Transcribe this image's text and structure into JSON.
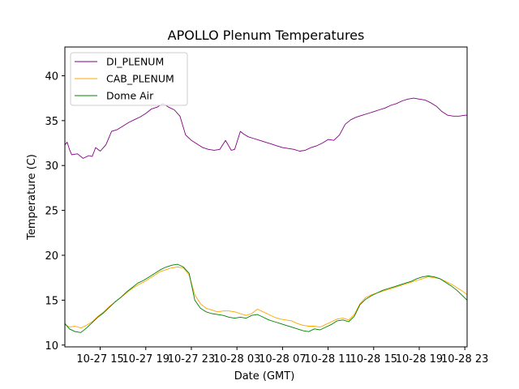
{
  "chart_data": {
    "type": "line",
    "title": "APOLLO Plenum Temperatures",
    "xlabel": "Date (GMT)",
    "ylabel": "Temperature (C)",
    "x_ticks": [
      "10-27 15",
      "10-27 19",
      "10-27 23",
      "10-28 03",
      "10-28 07",
      "10-28 11",
      "10-28 15",
      "10-28 19",
      "10-28 23"
    ],
    "y_ticks": [
      10,
      15,
      20,
      25,
      30,
      35,
      40
    ],
    "ylim": [
      9.8,
      43.2
    ],
    "xlim_hours": [
      11.9,
      47.2
    ],
    "x_tick_hours": [
      15,
      19,
      23,
      27,
      31,
      35,
      39,
      43,
      47
    ],
    "legend": {
      "placement": "top-left"
    },
    "series": [
      {
        "name": "DI_PLENUM",
        "color": "#800080",
        "x": [
          11.9,
          12.1,
          12.3,
          12.5,
          13.0,
          13.5,
          14.0,
          14.3,
          14.6,
          15.0,
          15.5,
          16.0,
          16.5,
          17.0,
          17.5,
          18.0,
          18.5,
          19.0,
          19.5,
          20.0,
          20.5,
          21.0,
          21.5,
          22.0,
          22.5,
          23.0,
          23.5,
          24.0,
          24.5,
          25.0,
          25.5,
          26.0,
          26.5,
          26.8,
          27.3,
          27.6,
          28.0,
          28.5,
          29.0,
          29.5,
          30.0,
          30.5,
          31.0,
          31.5,
          32.0,
          32.5,
          33.0,
          33.5,
          34.0,
          34.5,
          35.0,
          35.5,
          36.0,
          36.5,
          37.0,
          37.5,
          38.0,
          38.5,
          39.0,
          39.5,
          40.0,
          40.5,
          41.0,
          41.5,
          42.0,
          42.5,
          43.0,
          43.5,
          44.0,
          44.5,
          45.0,
          45.5,
          46.0,
          46.5,
          47.0,
          47.2
        ],
        "values": [
          32.3,
          32.6,
          31.8,
          31.2,
          31.3,
          30.8,
          31.1,
          31.0,
          32.0,
          31.6,
          32.3,
          33.8,
          34.0,
          34.4,
          34.8,
          35.1,
          35.4,
          35.8,
          36.3,
          36.5,
          36.9,
          36.5,
          36.2,
          35.5,
          33.4,
          32.8,
          32.4,
          32.0,
          31.8,
          31.7,
          31.8,
          32.8,
          31.7,
          31.8,
          33.8,
          33.5,
          33.2,
          33.0,
          32.8,
          32.6,
          32.4,
          32.2,
          32.0,
          31.9,
          31.8,
          31.6,
          31.7,
          32.0,
          32.2,
          32.5,
          32.9,
          32.8,
          33.4,
          34.6,
          35.1,
          35.4,
          35.6,
          35.8,
          36.0,
          36.2,
          36.4,
          36.7,
          36.9,
          37.2,
          37.4,
          37.5,
          37.4,
          37.3,
          37.0,
          36.6,
          36.0,
          35.6,
          35.5,
          35.5,
          35.6,
          35.6
        ]
      },
      {
        "name": "CAB_PLENUM",
        "color": "#ffa500",
        "x": [
          11.9,
          12.3,
          12.8,
          13.3,
          13.8,
          14.3,
          14.8,
          15.3,
          15.8,
          16.3,
          16.8,
          17.3,
          17.8,
          18.3,
          18.8,
          19.3,
          19.8,
          20.3,
          20.8,
          21.3,
          21.8,
          22.3,
          22.8,
          23.3,
          23.8,
          24.3,
          24.8,
          25.3,
          25.8,
          26.3,
          26.8,
          27.3,
          27.8,
          28.3,
          28.8,
          29.3,
          29.8,
          30.3,
          30.8,
          31.3,
          31.8,
          32.3,
          32.8,
          33.3,
          33.8,
          34.3,
          34.8,
          35.3,
          35.8,
          36.3,
          36.8,
          37.3,
          37.8,
          38.3,
          38.8,
          39.3,
          39.8,
          40.3,
          40.8,
          41.3,
          41.8,
          42.3,
          42.8,
          43.3,
          43.8,
          44.3,
          44.8,
          45.3,
          45.8,
          46.3,
          46.8,
          47.2
        ],
        "values": [
          12.3,
          12.0,
          12.1,
          11.9,
          12.2,
          12.6,
          13.2,
          13.7,
          14.3,
          14.8,
          15.3,
          15.8,
          16.3,
          16.7,
          17.0,
          17.4,
          17.8,
          18.2,
          18.4,
          18.6,
          18.7,
          18.6,
          17.8,
          15.6,
          14.6,
          14.1,
          13.9,
          13.7,
          13.8,
          13.8,
          13.7,
          13.5,
          13.3,
          13.5,
          14.0,
          13.7,
          13.4,
          13.1,
          12.9,
          12.8,
          12.7,
          12.4,
          12.2,
          12.1,
          12.1,
          12.0,
          12.3,
          12.6,
          12.9,
          13.0,
          12.8,
          13.4,
          14.6,
          15.3,
          15.6,
          15.8,
          16.0,
          16.2,
          16.4,
          16.6,
          16.8,
          17.0,
          17.2,
          17.4,
          17.6,
          17.5,
          17.4,
          17.1,
          16.8,
          16.4,
          16.0,
          15.6
        ]
      },
      {
        "name": "Dome Air",
        "color": "#008000",
        "x": [
          11.9,
          12.3,
          12.8,
          13.3,
          13.8,
          14.3,
          14.8,
          15.3,
          15.8,
          16.3,
          16.8,
          17.3,
          17.8,
          18.3,
          18.8,
          19.3,
          19.8,
          20.3,
          20.8,
          21.3,
          21.8,
          22.3,
          22.8,
          23.3,
          23.8,
          24.3,
          24.8,
          25.3,
          25.8,
          26.3,
          26.8,
          27.3,
          27.8,
          28.3,
          28.8,
          29.3,
          29.8,
          30.3,
          30.8,
          31.3,
          31.8,
          32.3,
          32.8,
          33.3,
          33.8,
          34.3,
          34.8,
          35.3,
          35.8,
          36.3,
          36.8,
          37.3,
          37.8,
          38.3,
          38.8,
          39.3,
          39.8,
          40.3,
          40.8,
          41.3,
          41.8,
          42.3,
          42.8,
          43.3,
          43.8,
          44.3,
          44.8,
          45.3,
          45.8,
          46.3,
          46.8,
          47.2
        ],
        "values": [
          12.4,
          11.8,
          11.5,
          11.4,
          11.9,
          12.5,
          13.1,
          13.6,
          14.2,
          14.8,
          15.3,
          15.9,
          16.4,
          16.9,
          17.2,
          17.6,
          18.0,
          18.4,
          18.7,
          18.9,
          19.0,
          18.7,
          18.0,
          15.0,
          14.1,
          13.7,
          13.5,
          13.4,
          13.3,
          13.1,
          13.0,
          13.1,
          13.0,
          13.3,
          13.4,
          13.1,
          12.8,
          12.6,
          12.4,
          12.2,
          12.0,
          11.8,
          11.6,
          11.5,
          11.8,
          11.7,
          12.0,
          12.3,
          12.7,
          12.8,
          12.6,
          13.2,
          14.5,
          15.1,
          15.5,
          15.8,
          16.1,
          16.3,
          16.5,
          16.7,
          16.9,
          17.1,
          17.4,
          17.6,
          17.7,
          17.6,
          17.4,
          17.0,
          16.6,
          16.1,
          15.5,
          15.0
        ]
      }
    ]
  }
}
